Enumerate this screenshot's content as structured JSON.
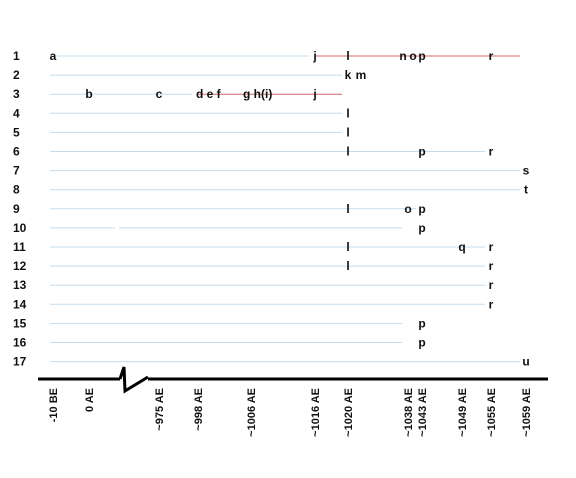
{
  "chart_data": {
    "type": "timeline",
    "title": "",
    "xlabel": "",
    "ylabel": "",
    "rows": [
      "1",
      "2",
      "3",
      "4",
      "5",
      "6",
      "7",
      "8",
      "9",
      "10",
      "11",
      "12",
      "13",
      "14",
      "15",
      "16",
      "17"
    ],
    "x_ticks": [
      "-10 BE",
      "0 AE",
      "~975 AE",
      "~998 AE",
      "~1006 AE",
      "~1016 AE",
      "~1020 AE",
      "~1038 AE",
      "~1043 AE",
      "~1049 AE",
      "~1055 AE",
      "~1059 AE"
    ],
    "axis_break": true,
    "rules": [
      {
        "row": 1,
        "from": "-10 BE",
        "to": "~1016 AE",
        "color": "#c5dcec"
      },
      {
        "row": 1,
        "from": "~1016 AE",
        "to": "~1059 AE",
        "color": "#d06868"
      },
      {
        "row": 2,
        "from": "-10 BE",
        "to": "~1020 AE",
        "color": "#c5dcec"
      },
      {
        "row": 3,
        "from": "-10 BE",
        "to": "~998 AE",
        "color": "#c5dcec"
      },
      {
        "row": 3,
        "from": "~998 AE",
        "to": "~1020 AE",
        "color": "#d06868"
      },
      {
        "row": 4,
        "from": "-10 BE",
        "to": "~1020 AE",
        "color": "#c5dcec"
      },
      {
        "row": 5,
        "from": "-10 BE",
        "to": "~1020 AE",
        "color": "#c5dcec"
      },
      {
        "row": 6,
        "from": "-10 BE",
        "to": "~1055 AE",
        "color": "#c5dcec"
      },
      {
        "row": 7,
        "from": "-10 BE",
        "to": "~1059 AE",
        "color": "#c5dcec"
      },
      {
        "row": 8,
        "from": "-10 BE",
        "to": "~1059 AE",
        "color": "#c5dcec"
      },
      {
        "row": 9,
        "from": "-10 BE",
        "to": "~1043 AE",
        "color": "#c5dcec"
      },
      {
        "row": 10,
        "from": "-10 BE",
        "to": "~1038 AE",
        "color": "#c5dcec",
        "gap_at": "0 AE"
      },
      {
        "row": 11,
        "from": "-10 BE",
        "to": "~1055 AE",
        "color": "#c5dcec"
      },
      {
        "row": 12,
        "from": "-10 BE",
        "to": "~1055 AE",
        "color": "#c5dcec"
      },
      {
        "row": 13,
        "from": "-10 BE",
        "to": "~1055 AE",
        "color": "#c5dcec"
      },
      {
        "row": 14,
        "from": "-10 BE",
        "to": "~1055 AE",
        "color": "#c5dcec"
      },
      {
        "row": 15,
        "from": "-10 BE",
        "to": "~1038 AE",
        "color": "#c5dcec"
      },
      {
        "row": 16,
        "from": "-10 BE",
        "to": "~1038 AE",
        "color": "#c5dcec"
      },
      {
        "row": 17,
        "from": "-10 BE",
        "to": "~1059 AE",
        "color": "#c5dcec"
      }
    ],
    "points": [
      {
        "row": 1,
        "label": "a",
        "at": "-10 BE"
      },
      {
        "row": 1,
        "label": "j",
        "at": "~1016 AE"
      },
      {
        "row": 1,
        "label": "l",
        "at": "~1020 AE"
      },
      {
        "row": 1,
        "label": "n",
        "at": "~1038 AE",
        "offset": -0.5
      },
      {
        "row": 1,
        "label": "o",
        "at": "~1038 AE",
        "offset": 0.5
      },
      {
        "row": 1,
        "label": "p",
        "at": "~1043 AE"
      },
      {
        "row": 1,
        "label": "r",
        "at": "~1055 AE"
      },
      {
        "row": 2,
        "label": "k",
        "at": "~1020 AE"
      },
      {
        "row": 2,
        "label": "m",
        "at": "~1020 AE",
        "offset": 1.3
      },
      {
        "row": 3,
        "label": "b",
        "at": "0 AE"
      },
      {
        "row": 3,
        "label": "c",
        "at": "~975 AE"
      },
      {
        "row": 3,
        "label": "d e f",
        "at": "~998 AE",
        "offset": 0.6
      },
      {
        "row": 3,
        "label": "g h(i)",
        "at": "~1006 AE"
      },
      {
        "row": 3,
        "label": "j",
        "at": "~1016 AE"
      },
      {
        "row": 4,
        "label": "l",
        "at": "~1020 AE"
      },
      {
        "row": 5,
        "label": "l",
        "at": "~1020 AE"
      },
      {
        "row": 6,
        "label": "l",
        "at": "~1020 AE"
      },
      {
        "row": 6,
        "label": "p",
        "at": "~1043 AE"
      },
      {
        "row": 6,
        "label": "r",
        "at": "~1055 AE"
      },
      {
        "row": 7,
        "label": "s",
        "at": "~1059 AE"
      },
      {
        "row": 8,
        "label": "t",
        "at": "~1059 AE"
      },
      {
        "row": 9,
        "label": "l",
        "at": "~1020 AE"
      },
      {
        "row": 9,
        "label": "o",
        "at": "~1038 AE"
      },
      {
        "row": 9,
        "label": "p",
        "at": "~1043 AE"
      },
      {
        "row": 10,
        "label": "p",
        "at": "~1043 AE"
      },
      {
        "row": 11,
        "label": "l",
        "at": "~1020 AE"
      },
      {
        "row": 11,
        "label": "q",
        "at": "~1049 AE"
      },
      {
        "row": 11,
        "label": "r",
        "at": "~1055 AE"
      },
      {
        "row": 12,
        "label": "l",
        "at": "~1020 AE"
      },
      {
        "row": 12,
        "label": "r",
        "at": "~1055 AE"
      },
      {
        "row": 13,
        "label": "r",
        "at": "~1055 AE"
      },
      {
        "row": 14,
        "label": "r",
        "at": "~1055 AE"
      },
      {
        "row": 15,
        "label": "p",
        "at": "~1043 AE"
      },
      {
        "row": 16,
        "label": "p",
        "at": "~1043 AE"
      },
      {
        "row": 17,
        "label": "u",
        "at": "~1059 AE"
      }
    ]
  },
  "colors": {
    "rule": "#c5dcec",
    "highlight": "#d06868",
    "text": "#111111",
    "axis": "#000000"
  }
}
